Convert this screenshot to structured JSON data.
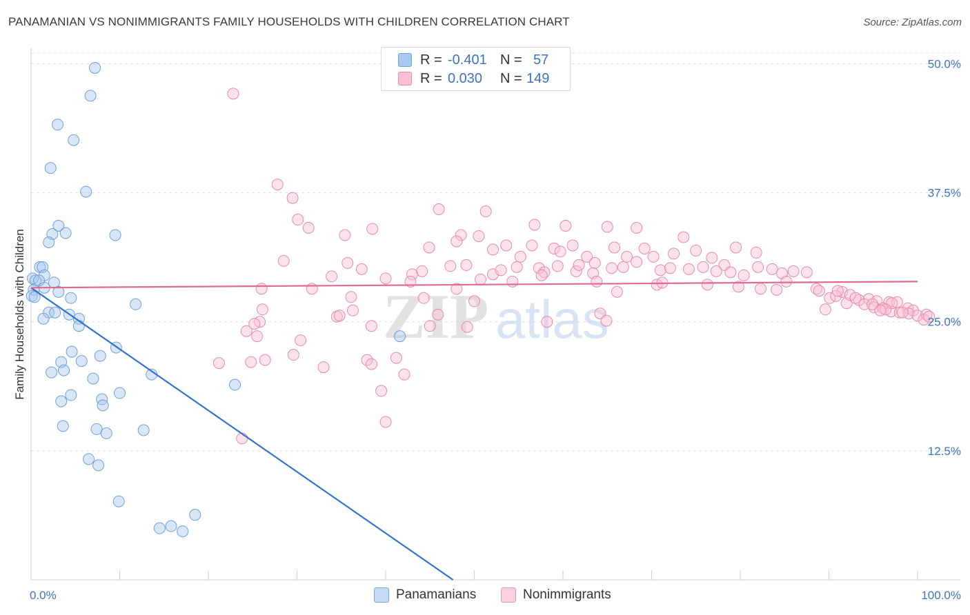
{
  "title": "PANAMANIAN VS NONIMMIGRANTS FAMILY HOUSEHOLDS WITH CHILDREN CORRELATION CHART",
  "source": "Source: ZipAtlas.com",
  "watermark": {
    "zip": "ZIP",
    "atlas": "atlas"
  },
  "legend": {
    "r_label": "R =",
    "n_label": "N =",
    "rows": [
      {
        "r": "-0.401",
        "n": "57",
        "color": "#a8c8f0",
        "border": "#6f9fd8"
      },
      {
        "r": "0.030",
        "n": "149",
        "color": "#f8c0d0",
        "border": "#e58aa8"
      }
    ]
  },
  "bottom_legend": [
    {
      "label": "Panamanians",
      "color": "#c5daf5",
      "border": "#7aa6df"
    },
    {
      "label": "Nonimmigrants",
      "color": "#fad0dc",
      "border": "#e79ab4"
    }
  ],
  "chart_data": {
    "type": "scatter",
    "title": "PANAMANIAN VS NONIMMIGRANTS FAMILY HOUSEHOLDS WITH CHILDREN CORRELATION CHART",
    "xlabel": "",
    "ylabel": "Family Households with Children",
    "xlim": [
      0,
      100
    ],
    "ylim": [
      0,
      51.5
    ],
    "x_tick_labels": [
      "0.0%",
      "100.0%"
    ],
    "y_ticks": [
      12.5,
      25.0,
      37.5,
      50.0
    ],
    "y_tick_labels": [
      "12.5%",
      "25.0%",
      "37.5%",
      "50.0%"
    ],
    "grid": "horizontal-dashed",
    "series": [
      {
        "name": "Panamanians",
        "color": "#a8c8f0",
        "stroke": "#6f9fd8",
        "trend": {
          "x": [
            0,
            47.6
          ],
          "y": [
            28.3,
            0
          ],
          "color": "#2f72d0"
        },
        "points": [
          [
            7.2,
            49.6
          ],
          [
            6.7,
            46.9
          ],
          [
            3.0,
            44.1
          ],
          [
            4.8,
            42.6
          ],
          [
            2.2,
            39.9
          ],
          [
            6.2,
            37.6
          ],
          [
            3.1,
            34.3
          ],
          [
            3.9,
            33.6
          ],
          [
            2.4,
            33.5
          ],
          [
            9.5,
            33.4
          ],
          [
            2.0,
            32.7
          ],
          [
            1.0,
            30.3
          ],
          [
            1.3,
            30.3
          ],
          [
            1.5,
            29.5
          ],
          [
            0.2,
            29.2
          ],
          [
            0.5,
            29.0
          ],
          [
            0.9,
            29.0
          ],
          [
            2.6,
            28.8
          ],
          [
            1.5,
            28.3
          ],
          [
            0.3,
            28.1
          ],
          [
            0.1,
            27.5
          ],
          [
            3.1,
            27.9
          ],
          [
            4.5,
            27.3
          ],
          [
            11.8,
            26.7
          ],
          [
            0.4,
            27.4
          ],
          [
            2.0,
            25.9
          ],
          [
            2.7,
            25.9
          ],
          [
            4.3,
            25.7
          ],
          [
            5.4,
            25.3
          ],
          [
            1.4,
            25.3
          ],
          [
            5.4,
            24.6
          ],
          [
            9.6,
            22.5
          ],
          [
            4.6,
            22.1
          ],
          [
            7.8,
            21.7
          ],
          [
            3.4,
            21.1
          ],
          [
            5.7,
            21.2
          ],
          [
            3.7,
            20.3
          ],
          [
            2.3,
            20.1
          ],
          [
            13.6,
            19.9
          ],
          [
            7.0,
            19.5
          ],
          [
            23.0,
            18.9
          ],
          [
            10.0,
            18.1
          ],
          [
            4.5,
            17.9
          ],
          [
            8.0,
            17.5
          ],
          [
            3.4,
            17.3
          ],
          [
            8.1,
            16.9
          ],
          [
            3.6,
            14.9
          ],
          [
            7.4,
            14.6
          ],
          [
            8.5,
            14.2
          ],
          [
            12.7,
            14.5
          ],
          [
            6.5,
            11.7
          ],
          [
            7.6,
            11.1
          ],
          [
            9.9,
            7.6
          ],
          [
            14.5,
            5.0
          ],
          [
            15.8,
            5.2
          ],
          [
            17.1,
            4.7
          ],
          [
            18.5,
            6.3
          ],
          [
            41.6,
            23.6
          ]
        ]
      },
      {
        "name": "Nonimmigrants",
        "color": "#f8c0d0",
        "stroke": "#e58aa8",
        "trend": {
          "x": [
            0,
            100
          ],
          "y": [
            28.3,
            28.9
          ],
          "color": "#e06b8f"
        },
        "points": [
          [
            22.8,
            47.1
          ],
          [
            27.8,
            38.3
          ],
          [
            29.5,
            37.0
          ],
          [
            30.1,
            34.9
          ],
          [
            31.3,
            34.1
          ],
          [
            35.4,
            33.4
          ],
          [
            46.0,
            35.9
          ],
          [
            51.3,
            35.7
          ],
          [
            38.5,
            34.0
          ],
          [
            48.5,
            33.4
          ],
          [
            56.8,
            34.4
          ],
          [
            60.3,
            34.3
          ],
          [
            65.0,
            34.2
          ],
          [
            68.3,
            34.1
          ],
          [
            50.5,
            33.3
          ],
          [
            44.9,
            32.2
          ],
          [
            48.0,
            32.8
          ],
          [
            52.1,
            32.0
          ],
          [
            53.6,
            32.4
          ],
          [
            55.2,
            31.3
          ],
          [
            56.5,
            32.4
          ],
          [
            59.0,
            32.1
          ],
          [
            59.7,
            31.8
          ],
          [
            61.1,
            32.4
          ],
          [
            62.7,
            31.3
          ],
          [
            63.6,
            30.7
          ],
          [
            65.8,
            32.2
          ],
          [
            67.2,
            31.3
          ],
          [
            69.2,
            32.1
          ],
          [
            70.2,
            31.3
          ],
          [
            72.5,
            31.6
          ],
          [
            73.6,
            33.2
          ],
          [
            75.0,
            31.9
          ],
          [
            76.8,
            31.2
          ],
          [
            78.2,
            30.5
          ],
          [
            79.5,
            32.2
          ],
          [
            81.8,
            31.7
          ],
          [
            28.5,
            30.9
          ],
          [
            35.7,
            30.7
          ],
          [
            37.3,
            30.1
          ],
          [
            40.0,
            29.2
          ],
          [
            43.0,
            29.6
          ],
          [
            44.1,
            29.9
          ],
          [
            47.3,
            30.4
          ],
          [
            49.1,
            30.5
          ],
          [
            52.1,
            29.6
          ],
          [
            53.0,
            30.0
          ],
          [
            54.8,
            30.3
          ],
          [
            57.3,
            30.2
          ],
          [
            57.9,
            29.8
          ],
          [
            59.4,
            30.4
          ],
          [
            61.5,
            29.9
          ],
          [
            61.8,
            30.5
          ],
          [
            63.4,
            29.7
          ],
          [
            65.5,
            30.2
          ],
          [
            66.8,
            30.3
          ],
          [
            68.3,
            30.8
          ],
          [
            71.0,
            30.0
          ],
          [
            72.1,
            30.2
          ],
          [
            74.2,
            30.1
          ],
          [
            75.8,
            30.3
          ],
          [
            77.3,
            29.9
          ],
          [
            78.9,
            29.8
          ],
          [
            80.4,
            29.5
          ],
          [
            82.0,
            30.3
          ],
          [
            83.6,
            30.1
          ],
          [
            84.7,
            29.7
          ],
          [
            86.0,
            29.9
          ],
          [
            87.5,
            29.8
          ],
          [
            33.9,
            29.4
          ],
          [
            42.8,
            28.9
          ],
          [
            50.7,
            29.1
          ],
          [
            54.3,
            28.9
          ],
          [
            57.6,
            29.5
          ],
          [
            63.8,
            28.9
          ],
          [
            70.6,
            28.6
          ],
          [
            71.2,
            28.8
          ],
          [
            76.3,
            28.6
          ],
          [
            79.8,
            28.4
          ],
          [
            82.3,
            28.2
          ],
          [
            84.1,
            28.1
          ],
          [
            85.2,
            28.9
          ],
          [
            88.6,
            28.2
          ],
          [
            88.9,
            28.0
          ],
          [
            26.0,
            28.2
          ],
          [
            31.7,
            28.2
          ],
          [
            36.1,
            27.4
          ],
          [
            44.3,
            27.3
          ],
          [
            48.0,
            28.2
          ],
          [
            50.0,
            27.0
          ],
          [
            66.1,
            27.9
          ],
          [
            90.1,
            27.3
          ],
          [
            91.5,
            27.9
          ],
          [
            92.0,
            26.8
          ],
          [
            93.4,
            27.1
          ],
          [
            94.5,
            27.2
          ],
          [
            95.4,
            27.0
          ],
          [
            96.8,
            26.9
          ],
          [
            97.7,
            26.9
          ],
          [
            98.9,
            26.3
          ],
          [
            99.5,
            26.1
          ],
          [
            89.6,
            26.2
          ],
          [
            90.8,
            27.5
          ],
          [
            91.0,
            28.0
          ],
          [
            92.4,
            27.6
          ],
          [
            93.0,
            27.3
          ],
          [
            94.0,
            26.7
          ],
          [
            95.1,
            26.4
          ],
          [
            96.1,
            26.3
          ],
          [
            97.0,
            26.0
          ],
          [
            98.0,
            25.9
          ],
          [
            99.0,
            25.8
          ],
          [
            100.0,
            25.6
          ],
          [
            101.0,
            25.7
          ],
          [
            100.7,
            25.2
          ],
          [
            101.3,
            25.5
          ],
          [
            97.1,
            26.8
          ],
          [
            96.4,
            26.2
          ],
          [
            95.8,
            26.1
          ],
          [
            94.9,
            26.7
          ],
          [
            98.3,
            25.9
          ],
          [
            26.1,
            26.2
          ],
          [
            36.3,
            26.1
          ],
          [
            45.9,
            25.7
          ],
          [
            58.2,
            25.0
          ],
          [
            64.2,
            25.8
          ],
          [
            64.9,
            25.1
          ],
          [
            25.8,
            25.0
          ],
          [
            25.2,
            24.8
          ],
          [
            34.5,
            25.5
          ],
          [
            34.8,
            25.6
          ],
          [
            38.4,
            24.6
          ],
          [
            45.0,
            24.6
          ],
          [
            49.2,
            24.5
          ],
          [
            24.3,
            24.1
          ],
          [
            30.4,
            23.2
          ],
          [
            29.6,
            21.8
          ],
          [
            26.4,
            21.3
          ],
          [
            24.8,
            21.1
          ],
          [
            21.2,
            21.0
          ],
          [
            37.9,
            21.3
          ],
          [
            41.2,
            21.5
          ],
          [
            38.4,
            20.9
          ],
          [
            33.0,
            20.6
          ],
          [
            42.1,
            19.9
          ],
          [
            39.5,
            18.3
          ],
          [
            40.0,
            15.3
          ],
          [
            25.5,
            23.6
          ],
          [
            23.8,
            13.7
          ]
        ]
      }
    ]
  }
}
